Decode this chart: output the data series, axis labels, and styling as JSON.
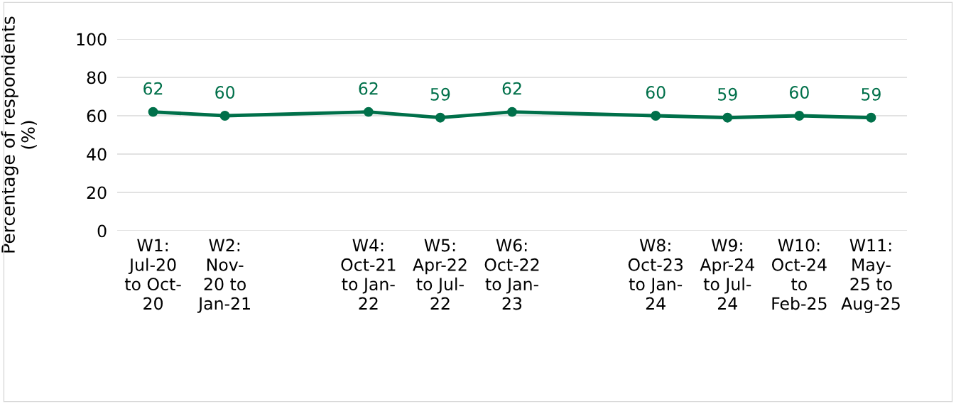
{
  "chart_data": {
    "type": "line",
    "ylabel": "Percentage of respondents (%)",
    "categories": [
      "W1:\nJul-20\nto Oct-\n20",
      "W2:\nNov-\n20 to\nJan-21",
      null,
      "W4:\nOct-21\nto Jan-\n22",
      "W5:\nApr-22\nto Jul-\n22",
      "W6:\nOct-22\nto Jan-\n23",
      null,
      "W8:\nOct-23\nto Jan-\n24",
      "W9:\nApr-24\nto Jul-\n24",
      "W10:\nOct-24\nto\nFeb-25",
      "W11:\nMay-\n25 to\nAug-25"
    ],
    "series": [
      {
        "color": "#00704a",
        "values": [
          62,
          60,
          null,
          62,
          59,
          62,
          null,
          60,
          59,
          60,
          59
        ]
      }
    ],
    "ylim": [
      0,
      100
    ],
    "yticks": [
      0,
      20,
      40,
      60,
      80,
      100
    ],
    "grid": "y",
    "marker": "circle",
    "line_style": "solid",
    "data_labels": true,
    "legend": false
  }
}
